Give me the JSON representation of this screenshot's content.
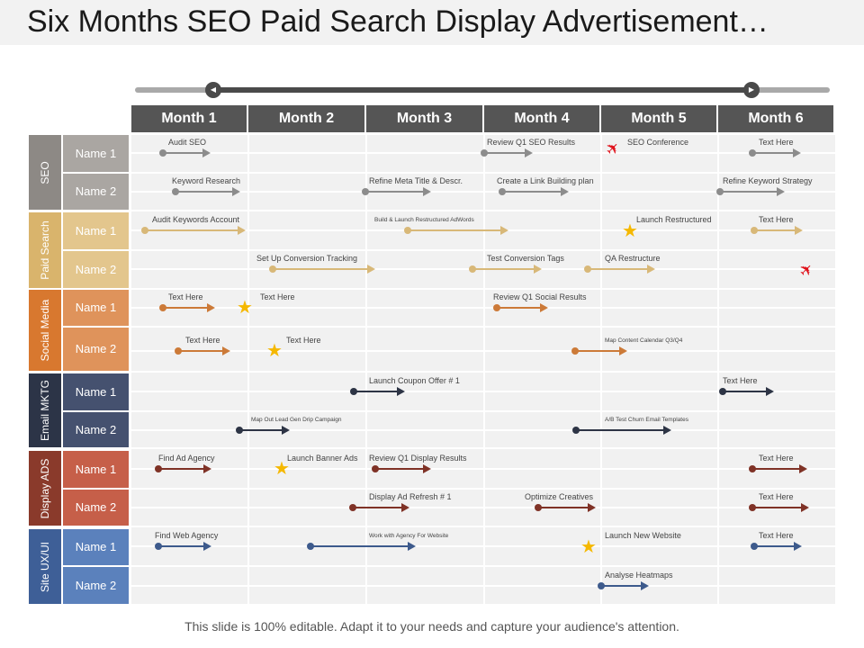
{
  "title": "Six Months SEO Paid Search Display Advertisement…",
  "months": [
    "Month 1",
    "Month 2",
    "Month 3",
    "Month 4",
    "Month 5",
    "Month 6"
  ],
  "groups": [
    {
      "label": "SEO",
      "color": "#8d8985",
      "name_color": "#aaa6a2",
      "arrow_color": "#8c8c8c",
      "names": [
        "Name 1",
        "Name 2"
      ]
    },
    {
      "label": "Paid Search",
      "color": "#d9b46c",
      "name_color": "#e3c68d",
      "arrow_color": "#d8b878",
      "names": [
        "Name 1",
        "Name 2"
      ]
    },
    {
      "label": "Social Media",
      "color": "#d8782f",
      "name_color": "#df935b",
      "arrow_color": "#cc7a38",
      "names": [
        "Name 1",
        "Name 2"
      ]
    },
    {
      "label": "Email MKTG",
      "color": "#2c3447",
      "name_color": "#45516f",
      "arrow_color": "#2d3445",
      "names": [
        "Name 1",
        "Name 2"
      ]
    },
    {
      "label": "Display ADS",
      "color": "#8a3a2b",
      "name_color": "#c65f49",
      "arrow_color": "#7f3226",
      "names": [
        "Name 1",
        "Name 2"
      ]
    },
    {
      "label": "Site UX/UI",
      "color": "#3e5f97",
      "name_color": "#5b81bc",
      "arrow_color": "#3d5a8c",
      "names": [
        "Name 1",
        "Name 2"
      ]
    }
  ],
  "tasks": [
    "Audit SEO",
    "Review Q1 SEO Results",
    "SEO Conference",
    "Text Here",
    "Keyword Research",
    "Refine Meta Title & Descr.",
    "Create a Link Building  plan",
    "Refine Keyword Strategy",
    "Audit Keywords Account",
    "Build & Launch Restructured AdWords",
    "Launch Restructured",
    "Text Here",
    "Set Up Conversion Tracking",
    "Test Conversion Tags",
    "QA Restructure",
    "Text Here",
    "Text Here",
    "Review Q1 Social Results",
    "Text Here",
    "Text Here",
    "Map Content  Calendar  Q3/Q4",
    "Launch Coupon Offer # 1",
    "Text Here",
    "Map Out Lead Gen Drip Campaign",
    "A/B Test Churn Email Templates",
    "Find Ad Agency",
    "Launch Banner Ads",
    "Review Q1 Display Results",
    "Text Here",
    "Display Ad Refresh # 1",
    "Optimize Creatives",
    "Text Here",
    "Find Web Agency",
    "Work with Agency  For Website",
    "Launch New Website",
    "Text Here",
    "Analyse Heatmaps"
  ],
  "markers": {
    "star": "star-icon",
    "plane": "airplane-icon"
  },
  "footer": "This slide is 100% editable. Adapt it to your needs and capture your audience's attention."
}
